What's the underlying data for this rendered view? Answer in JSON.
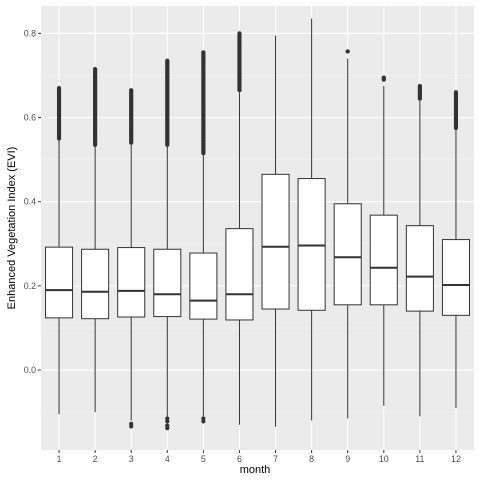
{
  "chart_data": {
    "type": "boxplot",
    "title": "",
    "xlabel": "month",
    "ylabel": "Enhanced Vegetation Index (EVI)",
    "ylim": [
      -0.19,
      0.865
    ],
    "yticks": [
      0.0,
      0.2,
      0.4,
      0.6,
      0.8
    ],
    "ytick_labels": [
      "0.0",
      "0.2",
      "0.4",
      "0.6",
      "0.8"
    ],
    "grid": true,
    "legend": "none",
    "categories": [
      "1",
      "2",
      "3",
      "4",
      "5",
      "6",
      "7",
      "8",
      "9",
      "10",
      "11",
      "12"
    ],
    "boxes": [
      {
        "month": "1",
        "lower_whisker": -0.105,
        "q1": 0.124,
        "median": 0.19,
        "q3": 0.292,
        "upper_whisker": 0.548,
        "outliers_low": [],
        "outliers_high_range": [
          0.55,
          0.67
        ]
      },
      {
        "month": "2",
        "lower_whisker": -0.1,
        "q1": 0.122,
        "median": 0.186,
        "q3": 0.287,
        "upper_whisker": 0.533,
        "outliers_low": [],
        "outliers_high_range": [
          0.535,
          0.715
        ]
      },
      {
        "month": "3",
        "lower_whisker": -0.12,
        "q1": 0.126,
        "median": 0.188,
        "q3": 0.291,
        "upper_whisker": 0.535,
        "outliers_low": [
          -0.128,
          -0.134
        ],
        "outliers_high_range": [
          0.54,
          0.665
        ]
      },
      {
        "month": "4",
        "lower_whisker": -0.11,
        "q1": 0.127,
        "median": 0.18,
        "q3": 0.287,
        "upper_whisker": 0.53,
        "outliers_low": [
          -0.115,
          -0.122,
          -0.132,
          -0.138
        ],
        "outliers_high_range": [
          0.535,
          0.735
        ]
      },
      {
        "month": "5",
        "lower_whisker": -0.11,
        "q1": 0.121,
        "median": 0.165,
        "q3": 0.278,
        "upper_whisker": 0.51,
        "outliers_low": [
          -0.115,
          -0.122
        ],
        "outliers_high_range": [
          0.515,
          0.755
        ]
      },
      {
        "month": "6",
        "lower_whisker": -0.13,
        "q1": 0.119,
        "median": 0.18,
        "q3": 0.336,
        "upper_whisker": 0.66,
        "outliers_low": [],
        "outliers_high_range": [
          0.665,
          0.8
        ]
      },
      {
        "month": "7",
        "lower_whisker": -0.135,
        "q1": 0.145,
        "median": 0.293,
        "q3": 0.465,
        "upper_whisker": 0.795,
        "outliers_low": [],
        "outliers_high_range": []
      },
      {
        "month": "8",
        "lower_whisker": -0.12,
        "q1": 0.142,
        "median": 0.296,
        "q3": 0.455,
        "upper_whisker": 0.835,
        "outliers_low": [],
        "outliers_high_range": []
      },
      {
        "month": "9",
        "lower_whisker": -0.115,
        "q1": 0.155,
        "median": 0.268,
        "q3": 0.395,
        "upper_whisker": 0.74,
        "outliers_low": [],
        "outliers_high_range": [
          0.757,
          0.757
        ]
      },
      {
        "month": "10",
        "lower_whisker": -0.085,
        "q1": 0.155,
        "median": 0.243,
        "q3": 0.368,
        "upper_whisker": 0.675,
        "outliers_low": [],
        "outliers_high_range": [
          0.69,
          0.695
        ]
      },
      {
        "month": "11",
        "lower_whisker": -0.11,
        "q1": 0.14,
        "median": 0.222,
        "q3": 0.343,
        "upper_whisker": 0.64,
        "outliers_low": [],
        "outliers_high_range": [
          0.645,
          0.675
        ]
      },
      {
        "month": "12",
        "lower_whisker": -0.09,
        "q1": 0.13,
        "median": 0.202,
        "q3": 0.31,
        "upper_whisker": 0.57,
        "outliers_low": [],
        "outliers_high_range": [
          0.575,
          0.66
        ]
      }
    ],
    "colors": {
      "panel": "#EBEBEB",
      "grid_major": "#FFFFFF",
      "grid_minor": "#F5F5F5",
      "box_fill": "#FFFFFF",
      "line": "#333333",
      "outlier": "#333333",
      "tick_text": "#4D4D4D",
      "axis_title": "#000000"
    }
  }
}
